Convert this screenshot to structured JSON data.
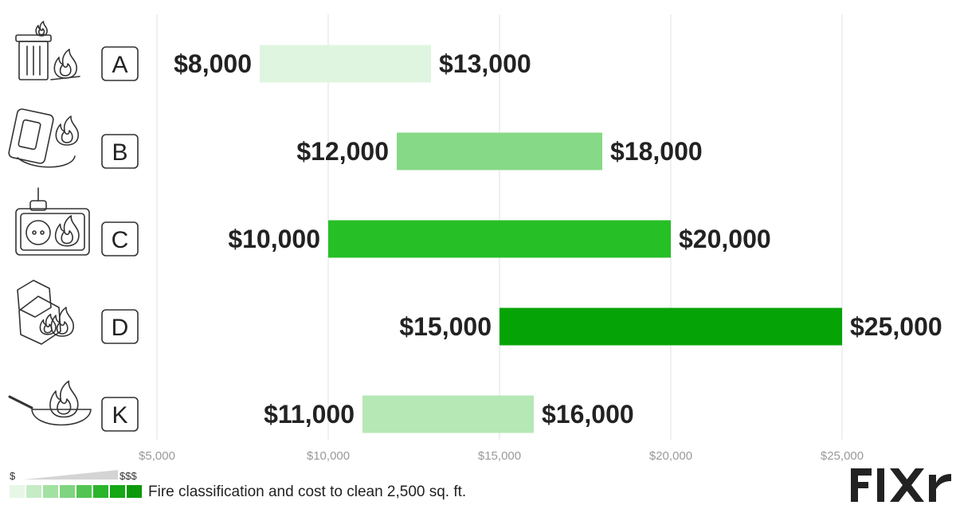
{
  "chart_data": {
    "type": "bar",
    "orientation": "horizontal-range",
    "categories": [
      "A",
      "B",
      "C",
      "D",
      "K"
    ],
    "ranges": [
      {
        "class": "A",
        "low": 8000,
        "high": 13000,
        "low_label": "$8,000",
        "high_label": "$13,000",
        "color": "#dff5df",
        "icon": "trash-can-fire-icon"
      },
      {
        "class": "B",
        "low": 12000,
        "high": 18000,
        "low_label": "$12,000",
        "high_label": "$18,000",
        "color": "#86d986",
        "icon": "fuel-canister-fire-icon"
      },
      {
        "class": "C",
        "low": 10000,
        "high": 20000,
        "low_label": "$10,000",
        "high_label": "$20,000",
        "color": "#26bf26",
        "icon": "electrical-outlet-fire-icon"
      },
      {
        "class": "D",
        "low": 15000,
        "high": 25000,
        "low_label": "$15,000",
        "high_label": "$25,000",
        "color": "#05a305",
        "icon": "metal-hexagon-fire-icon"
      },
      {
        "class": "K",
        "low": 11000,
        "high": 16000,
        "low_label": "$11,000",
        "high_label": "$16,000",
        "color": "#b5e8b5",
        "icon": "frying-pan-fire-icon"
      }
    ],
    "xlim": [
      5000,
      25000
    ],
    "x_ticks": [
      5000,
      10000,
      15000,
      20000,
      25000
    ],
    "x_tick_labels": [
      "$5,000",
      "$10,000",
      "$15,000",
      "$20,000",
      "$25,000"
    ],
    "grid": "vertical"
  },
  "legend": {
    "low_label": "$",
    "high_label": "$$$",
    "caption": "Fire classification and cost to clean 2,500 sq. ft.",
    "swatches": [
      "#e6f7e6",
      "#c5ecc5",
      "#a3e1a3",
      "#7fd47f",
      "#52c452",
      "#2bb52b",
      "#14a814",
      "#0a9a0a"
    ]
  },
  "logo": {
    "text": "FIXR",
    "color": "#222222"
  }
}
